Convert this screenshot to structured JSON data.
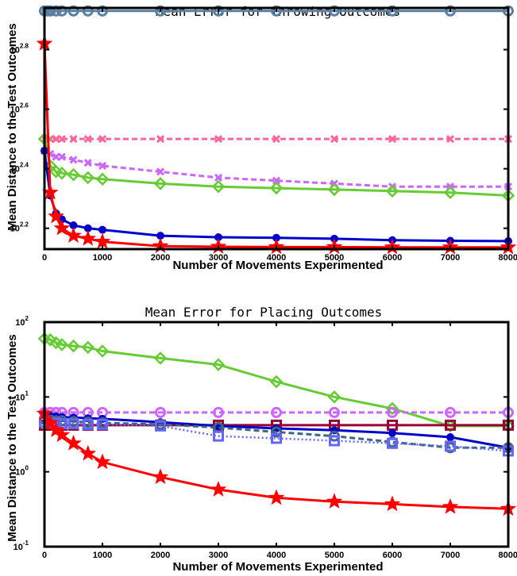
{
  "chart_data": [
    {
      "type": "line",
      "title": "Mean Error for Throwing Outcomes",
      "xlabel": "Number of Movements Experimented",
      "ylabel": "Mean Distance to the Test Outcomes",
      "yscale": "log",
      "xlim": [
        0,
        8000
      ],
      "ylim_log10": [
        2.13,
        2.94
      ],
      "xticks": [
        "0",
        "1000",
        "2000",
        "3000",
        "4000",
        "5000",
        "6000",
        "7000",
        "8000"
      ],
      "yticks": [
        {
          "base": "10",
          "exp": "2.2",
          "value_log10": 2.2
        },
        {
          "base": "10",
          "exp": "2.4",
          "value_log10": 2.4
        },
        {
          "base": "10",
          "exp": "2.6",
          "value_log10": 2.6
        },
        {
          "base": "10",
          "exp": "2.8",
          "value_log10": 2.8
        }
      ],
      "grid": false,
      "series": [
        {
          "color": "#5a7fa0",
          "style": "solid",
          "marker": "o",
          "x": [
            0,
            50,
            100,
            200,
            300,
            500,
            750,
            1000,
            2000,
            3000,
            4000,
            5000,
            6000,
            7000,
            8000
          ],
          "log10_y": [
            2.93,
            2.93,
            2.93,
            2.93,
            2.93,
            2.93,
            2.93,
            2.93,
            2.93,
            2.93,
            2.93,
            2.93,
            2.93,
            2.93,
            2.93
          ]
        },
        {
          "color": "#ff6699",
          "style": "dashed",
          "marker": "x",
          "x": [
            0,
            100,
            200,
            300,
            500,
            750,
            1000,
            2000,
            3000,
            4000,
            5000,
            6000,
            7000,
            8000
          ],
          "log10_y": [
            2.5,
            2.5,
            2.5,
            2.5,
            2.5,
            2.5,
            2.5,
            2.5,
            2.5,
            2.5,
            2.5,
            2.5,
            2.5,
            2.5
          ]
        },
        {
          "color": "#cc66ff",
          "style": "dashed",
          "marker": "x",
          "x": [
            0,
            100,
            200,
            300,
            500,
            750,
            1000,
            2000,
            3000,
            4000,
            5000,
            6000,
            7000,
            8000
          ],
          "log10_y": [
            2.46,
            2.45,
            2.44,
            2.44,
            2.43,
            2.42,
            2.41,
            2.39,
            2.37,
            2.36,
            2.35,
            2.34,
            2.34,
            2.34
          ]
        },
        {
          "color": "#66cc33",
          "style": "solid",
          "marker": "diamond",
          "x": [
            0,
            100,
            200,
            300,
            500,
            750,
            1000,
            2000,
            3000,
            4000,
            5000,
            6000,
            7000,
            8000
          ],
          "log10_y": [
            2.5,
            2.41,
            2.39,
            2.385,
            2.38,
            2.37,
            2.365,
            2.35,
            2.34,
            2.335,
            2.33,
            2.325,
            2.32,
            2.31
          ]
        },
        {
          "color": "#0000cc",
          "style": "solid",
          "marker": "dot",
          "x": [
            0,
            100,
            200,
            300,
            500,
            750,
            1000,
            2000,
            3000,
            4000,
            5000,
            6000,
            7000,
            8000
          ],
          "log10_y": [
            2.46,
            2.31,
            2.25,
            2.23,
            2.21,
            2.2,
            2.195,
            2.175,
            2.17,
            2.168,
            2.165,
            2.16,
            2.158,
            2.157
          ]
        },
        {
          "color": "#ff0000",
          "style": "solid",
          "marker": "star",
          "x": [
            0,
            100,
            200,
            300,
            500,
            750,
            1000,
            2000,
            3000,
            4000,
            5000,
            6000,
            7000,
            8000
          ],
          "log10_y": [
            2.82,
            2.32,
            2.24,
            2.2,
            2.175,
            2.165,
            2.155,
            2.14,
            2.138,
            2.137,
            2.137,
            2.136,
            2.136,
            2.136
          ]
        }
      ]
    },
    {
      "type": "line",
      "title": "Mean Error for Placing Outcomes",
      "xlabel": "Number of Movements Experimented",
      "ylabel": "Mean Distance to the Test Outcomes",
      "yscale": "log",
      "xlim": [
        0,
        8000
      ],
      "ylim": [
        0.1,
        100
      ],
      "xticks": [
        "0",
        "1000",
        "2000",
        "3000",
        "4000",
        "5000",
        "6000",
        "7000",
        "8000"
      ],
      "yticks": [
        {
          "base": "10",
          "exp": "-1",
          "value_log10": -1
        },
        {
          "base": "10",
          "exp": "0",
          "value_log10": 0
        },
        {
          "base": "10",
          "exp": "1",
          "value_log10": 1
        },
        {
          "base": "10",
          "exp": "2",
          "value_log10": 2
        }
      ],
      "grid": false,
      "series": [
        {
          "color": "#66cc33",
          "style": "solid",
          "marker": "diamond",
          "x": [
            0,
            100,
            200,
            300,
            500,
            750,
            1000,
            2000,
            3000,
            4000,
            5000,
            6000,
            7000,
            8000
          ],
          "y": [
            60,
            58,
            53,
            50,
            48,
            46,
            41,
            33,
            27,
            16,
            10,
            7,
            4.1,
            4.1
          ]
        },
        {
          "color": "#cc66ff",
          "style": "dashed",
          "marker": "o",
          "x": [
            0,
            100,
            200,
            300,
            500,
            750,
            1000,
            2000,
            3000,
            4000,
            5000,
            6000,
            7000,
            8000
          ],
          "y": [
            6.2,
            6.2,
            6.2,
            6.2,
            6.2,
            6.2,
            6.2,
            6.2,
            6.2,
            6.2,
            6.2,
            6.2,
            6.2,
            6.2
          ]
        },
        {
          "color": "#990033",
          "style": "solid",
          "marker": "square",
          "x": [
            0,
            100,
            200,
            300,
            500,
            750,
            1000,
            2000,
            3000,
            4000,
            5000,
            6000,
            7000,
            8000
          ],
          "y": [
            4.2,
            4.2,
            4.2,
            4.2,
            4.2,
            4.2,
            4.2,
            4.2,
            4.2,
            4.2,
            4.2,
            4.2,
            4.2,
            4.2
          ]
        },
        {
          "color": "#0000cc",
          "style": "solid",
          "marker": "dot",
          "x": [
            0,
            100,
            200,
            300,
            500,
            750,
            1000,
            2000,
            3000,
            4000,
            5000,
            6000,
            7000,
            8000
          ],
          "y": [
            5.8,
            5.6,
            5.5,
            5.4,
            5.3,
            5.2,
            5.1,
            4.6,
            4.1,
            3.8,
            3.6,
            3.3,
            2.9,
            2.1
          ]
        },
        {
          "color": "#3d6680",
          "style": "dashed",
          "marker": "o",
          "x": [
            0,
            100,
            200,
            300,
            500,
            750,
            1000,
            2000,
            3000,
            4000,
            5000,
            6000,
            7000,
            8000
          ],
          "y": [
            5.0,
            4.9,
            4.8,
            4.8,
            4.7,
            4.6,
            4.5,
            4.3,
            3.9,
            3.4,
            3.0,
            2.5,
            2.1,
            2.1
          ]
        },
        {
          "color": "#6666ff",
          "style": "dotted",
          "marker": "square",
          "x": [
            0,
            100,
            200,
            300,
            500,
            750,
            1000,
            2000,
            3000,
            4000,
            5000,
            6000,
            7000,
            8000
          ],
          "y": [
            4.6,
            4.5,
            4.5,
            4.4,
            4.4,
            4.3,
            4.3,
            4.1,
            3.0,
            2.8,
            2.6,
            2.4,
            2.2,
            1.9
          ]
        },
        {
          "color": "#ff0000",
          "style": "solid",
          "marker": "star",
          "x": [
            0,
            100,
            200,
            300,
            500,
            750,
            1000,
            2000,
            3000,
            4000,
            5000,
            6000,
            7000,
            8000
          ],
          "y": [
            6.0,
            4.5,
            3.6,
            3.1,
            2.4,
            1.75,
            1.35,
            0.85,
            0.58,
            0.45,
            0.4,
            0.37,
            0.34,
            0.32
          ]
        }
      ]
    }
  ]
}
